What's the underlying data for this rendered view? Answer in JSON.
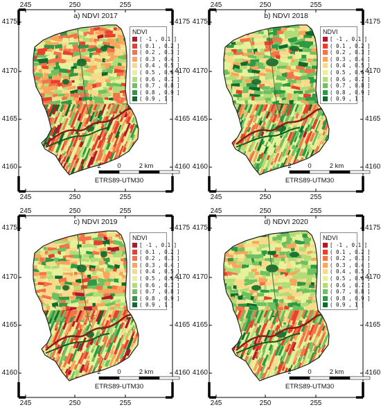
{
  "panels": [
    {
      "title": "a) NDVI 2017",
      "variant": 0
    },
    {
      "title": "b) NDVI 2018",
      "variant": 1
    },
    {
      "title": "c) NDVI 2019",
      "variant": 2
    },
    {
      "title": "d) NDVI 2020",
      "variant": 3
    }
  ],
  "axes": {
    "x_ticks": [
      "245",
      "250",
      "255"
    ],
    "y_ticks": [
      "4175",
      "4170",
      "4165",
      "4160"
    ]
  },
  "legend": {
    "title": "NDVI",
    "classes": [
      {
        "label": "[ -1 , 0.1 ]",
        "color": "#b2182b"
      },
      {
        "label": "( 0.1 , 0.2 ]",
        "color": "#e8402d"
      },
      {
        "label": "( 0.2 , 0.3 ]",
        "color": "#f4734a"
      },
      {
        "label": "( 0.3 , 0.4 ]",
        "color": "#f9a65d"
      },
      {
        "label": "( 0.4 , 0.5 ]",
        "color": "#fbd98a"
      },
      {
        "label": "( 0.5 , 0.6 ]",
        "color": "#e6f19c"
      },
      {
        "label": "( 0.6 , 0.7 ]",
        "color": "#b1dc78"
      },
      {
        "label": "( 0.7 , 0.8 ]",
        "color": "#6fc060"
      },
      {
        "label": "( 0.8 , 0.9 ]",
        "color": "#2e9a45"
      },
      {
        "label": "( 0.9 , 1 ]",
        "color": "#116b2e"
      }
    ]
  },
  "scale_bar": {
    "labels": [
      "2",
      "0",
      "2 km"
    ]
  },
  "crs_label": "ETRS89-UTM30"
}
